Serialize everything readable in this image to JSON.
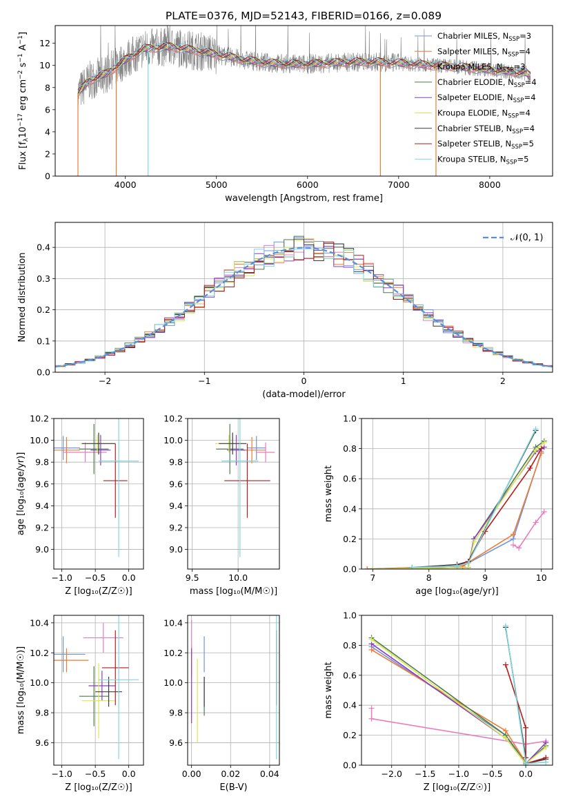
{
  "figure_title": "PLATE=0376, MJD=52143, FIBERID=0166, z=0.089",
  "colors": {
    "Chabrier MILES": "#6f93de",
    "Salpeter MILES": "#ee7a2e",
    "Kroupa MILES": "#e87dbd",
    "Chabrier ELODIE": "#4d7a4d",
    "Salpeter ELODIE": "#8a3cc4",
    "Kroupa ELODIE": "#d8e84d",
    "Chabrier STELIB": "#3a3a3a",
    "Salpeter STELIB": "#b31a1a",
    "Kroupa STELIB": "#7dd8e0",
    "data": "#808080",
    "normal": "#5a8ee0",
    "grid": "#b0b0b0"
  },
  "chart_data": [
    {
      "id": "spectrum",
      "type": "line",
      "title": "PLATE=0376, MJD=52143, FIBERID=0166, z=0.089",
      "xlabel": "wavelength [Angstrom, rest frame]",
      "ylabel_parts": [
        "Flux [f",
        "λ",
        "10",
        "−17",
        " erg cm",
        "−2",
        " s",
        "−1",
        " A",
        "−1",
        "]"
      ],
      "xlim": [
        3230,
        8690
      ],
      "ylim": [
        0,
        13.6
      ],
      "xticks": [
        "4000",
        "5000",
        "6000",
        "7000",
        "8000"
      ],
      "yticks": [
        "0",
        "2",
        "4",
        "6",
        "8",
        "10",
        "12"
      ],
      "grid": false,
      "legend_position": "right",
      "series": [
        {
          "label": "Chabrier MILES, N",
          "n": "3",
          "color": "#6f93de"
        },
        {
          "label": "Salpeter MILES, N",
          "n": "4",
          "color": "#ee7a2e"
        },
        {
          "label": "Kroupa MILES, N",
          "n": "3",
          "color": "#e87dbd"
        },
        {
          "label": "Chabrier ELODIE, N",
          "n": "4",
          "color": "#4d7a4d"
        },
        {
          "label": "Salpeter ELODIE, N",
          "n": "4",
          "color": "#8a3cc4"
        },
        {
          "label": "Kroupa ELODIE, N",
          "n": "4",
          "color": "#d8e84d"
        },
        {
          "label": "Chabrier STELIB, N",
          "n": "4",
          "color": "#3a3a3a"
        },
        {
          "label": "Salpeter STELIB, N",
          "n": "5",
          "color": "#b31a1a"
        },
        {
          "label": "Kroupa STELIB, N",
          "n": "5",
          "color": "#7dd8e0"
        }
      ],
      "legend_sub": "SSP",
      "continuum": [
        [
          3480,
          7.5
        ],
        [
          3600,
          8.6
        ],
        [
          3800,
          9.3
        ],
        [
          4000,
          10.5
        ],
        [
          4200,
          11.5
        ],
        [
          4500,
          11.7
        ],
        [
          4800,
          11.3
        ],
        [
          5000,
          11.0
        ],
        [
          5300,
          10.5
        ],
        [
          5600,
          10.2
        ],
        [
          5900,
          10.1
        ],
        [
          6200,
          10.2
        ],
        [
          6500,
          10.3
        ],
        [
          6800,
          10.3
        ],
        [
          7200,
          10.1
        ],
        [
          7600,
          9.9
        ],
        [
          8000,
          9.6
        ],
        [
          8400,
          9.3
        ],
        [
          8450,
          9.0
        ]
      ],
      "spikes": [
        [
          3900,
          0
        ],
        [
          4250,
          0
        ],
        [
          6800,
          0
        ],
        [
          7410,
          0
        ],
        [
          3480,
          0
        ]
      ]
    },
    {
      "id": "residuals",
      "type": "histogram",
      "xlabel": "(data-model)/error",
      "ylabel": "Normed distribution",
      "xlim": [
        -2.5,
        2.5
      ],
      "ylim": [
        0,
        0.48
      ],
      "xticks": [
        "−2",
        "−1",
        "0",
        "1",
        "2"
      ],
      "yticks": [
        "0.0",
        "0.1",
        "0.2",
        "0.3",
        "0.4"
      ],
      "grid": true,
      "legend_position": "top-right",
      "normal_label": "𝒩(0, 1)",
      "bin_width": 0.1
    },
    {
      "id": "age-vs-Z",
      "type": "scatter",
      "xlabel": "Z [log₁₀(Z/Z☉)]",
      "ylabel": "age  [log₁₀(age/yr)]",
      "xlim": [
        -1.12,
        0.22
      ],
      "ylim": [
        8.82,
        10.2
      ],
      "xticks": [
        "−1.0",
        "−0.5",
        "0.0"
      ],
      "yticks": [
        "9.0",
        "9.2",
        "9.4",
        "9.6",
        "9.8",
        "10.0",
        "10.2"
      ],
      "grid": true,
      "points": [
        {
          "c": "Chabrier MILES",
          "x": -0.98,
          "y": 9.93,
          "ex": 0.25,
          "ey": 0.11
        },
        {
          "c": "Salpeter MILES",
          "x": -0.93,
          "y": 9.91,
          "ex": 0.2,
          "ey": 0.12
        },
        {
          "c": "Kroupa MILES",
          "x": -0.65,
          "y": 9.89,
          "ex": 0.32,
          "ey": 0.09
        },
        {
          "c": "Chabrier ELODIE",
          "x": -0.52,
          "y": 9.92,
          "ex": 0.22,
          "ey": 0.23
        },
        {
          "c": "Salpeter ELODIE",
          "x": -0.42,
          "y": 9.91,
          "ex": 0.15,
          "ey": 0.14
        },
        {
          "c": "Kroupa ELODIE",
          "x": -0.47,
          "y": 9.97,
          "ex": 0.25,
          "ey": 0.08
        },
        {
          "c": "Chabrier STELIB",
          "x": -0.45,
          "y": 9.97,
          "ex": 0.25,
          "ey": 0.1
        },
        {
          "c": "Salpeter STELIB",
          "x": -0.2,
          "y": 9.63,
          "ex": 0.18,
          "ey": 0.34
        },
        {
          "c": "Kroupa STELIB",
          "x": -0.15,
          "y": 9.81,
          "ex": 0.3,
          "ey": 0.88
        }
      ]
    },
    {
      "id": "age-vs-mass",
      "type": "scatter",
      "xlabel": "mass [log₁₀(M/M☉)]",
      "ylabel": "",
      "xlim": [
        9.45,
        10.45
      ],
      "ylim": [
        8.82,
        10.2
      ],
      "xticks": [
        "9.5",
        "10.0"
      ],
      "yticks": [
        "9.0",
        "9.2",
        "9.4",
        "9.6",
        "9.8",
        "10.0",
        "10.2"
      ],
      "grid": true,
      "points": [
        {
          "c": "Chabrier MILES",
          "x": 10.2,
          "y": 9.93,
          "ex": 0.1,
          "ey": 0.11
        },
        {
          "c": "Salpeter MILES",
          "x": 10.15,
          "y": 9.91,
          "ex": 0.15,
          "ey": 0.12
        },
        {
          "c": "Kroupa MILES",
          "x": 10.3,
          "y": 9.89,
          "ex": 0.1,
          "ey": 0.09
        },
        {
          "c": "Chabrier ELODIE",
          "x": 9.91,
          "y": 9.92,
          "ex": 0.15,
          "ey": 0.23
        },
        {
          "c": "Salpeter ELODIE",
          "x": 9.98,
          "y": 9.91,
          "ex": 0.1,
          "ey": 0.14
        },
        {
          "c": "Kroupa ELODIE",
          "x": 9.9,
          "y": 9.97,
          "ex": 0.15,
          "ey": 0.08
        },
        {
          "c": "Chabrier STELIB",
          "x": 9.94,
          "y": 9.97,
          "ex": 0.15,
          "ey": 0.1
        },
        {
          "c": "Salpeter STELIB",
          "x": 10.1,
          "y": 9.63,
          "ex": 0.25,
          "ey": 0.34
        },
        {
          "c": "Kroupa STELIB",
          "x": 10.02,
          "y": 9.81,
          "ex": 0.2,
          "ey": 0.88
        }
      ]
    },
    {
      "id": "weight-vs-age",
      "type": "line",
      "xlabel": "age  [log₁₀(age/yr)]",
      "ylabel": "mass weight",
      "xlim": [
        6.8,
        10.2
      ],
      "ylim": [
        0,
        1
      ],
      "xticks": [
        "7",
        "8",
        "9",
        "10"
      ],
      "yticks": [
        "0.0",
        "0.2",
        "0.4",
        "0.6",
        "0.8",
        "1.0"
      ],
      "grid": true,
      "series": [
        {
          "c": "Chabrier MILES",
          "x": [
            6.9,
            8.6,
            9.5,
            10.0
          ],
          "y": [
            0.0,
            0.02,
            0.2,
            0.78
          ]
        },
        {
          "c": "Salpeter MILES",
          "x": [
            6.9,
            8.6,
            9.5,
            10.0
          ],
          "y": [
            0.0,
            0.02,
            0.23,
            0.77
          ]
        },
        {
          "c": "Kroupa MILES",
          "x": [
            9.5,
            9.6,
            9.9,
            10.05
          ],
          "y": [
            0.16,
            0.14,
            0.31,
            0.38
          ]
        },
        {
          "c": "Chabrier ELODIE",
          "x": [
            7.0,
            8.7,
            8.8,
            9.9,
            10.05
          ],
          "y": [
            0.0,
            0.01,
            0.2,
            0.81,
            0.85
          ]
        },
        {
          "c": "Salpeter ELODIE",
          "x": [
            7.0,
            8.7,
            8.8,
            9.9,
            10.05
          ],
          "y": [
            0.0,
            0.01,
            0.2,
            0.78,
            0.81
          ]
        },
        {
          "c": "Kroupa ELODIE",
          "x": [
            7.0,
            8.7,
            8.8,
            9.9,
            10.05
          ],
          "y": [
            0.0,
            0.01,
            0.18,
            0.79,
            0.84
          ]
        },
        {
          "c": "Chabrier STELIB",
          "x": [
            7.7,
            8.5,
            8.7,
            9.9
          ],
          "y": [
            0.01,
            0.03,
            0.05,
            0.92
          ]
        },
        {
          "c": "Salpeter STELIB",
          "x": [
            8.5,
            8.7,
            9.0,
            9.8,
            10.0
          ],
          "y": [
            0.02,
            0.05,
            0.25,
            0.67,
            0.8
          ]
        },
        {
          "c": "Kroupa STELIB",
          "x": [
            7.7,
            8.5,
            8.7,
            9.9
          ],
          "y": [
            0.01,
            0.02,
            0.04,
            0.93
          ]
        }
      ]
    },
    {
      "id": "mass-vs-Z",
      "type": "scatter",
      "xlabel": "Z [log₁₀(Z/Z☉)]",
      "ylabel": "mass [log₁₀(M/M☉)]",
      "xlim": [
        -1.12,
        0.22
      ],
      "ylim": [
        9.45,
        10.45
      ],
      "xticks": [
        "−1.0",
        "−0.5",
        "0.0"
      ],
      "yticks": [
        "9.6",
        "9.8",
        "10.0",
        "10.2",
        "10.4"
      ],
      "grid": true,
      "points": [
        {
          "c": "Chabrier MILES",
          "x": -0.98,
          "y": 10.19,
          "ex": 0.33,
          "ey": 0.12
        },
        {
          "c": "Salpeter MILES",
          "x": -0.93,
          "y": 10.15,
          "ex": 0.33,
          "ey": 0.08
        },
        {
          "c": "Kroupa MILES",
          "x": -0.38,
          "y": 10.3,
          "ex": 0.3,
          "ey": 0.1
        },
        {
          "c": "Chabrier ELODIE",
          "x": -0.52,
          "y": 9.91,
          "ex": 0.22,
          "ey": 0.2
        },
        {
          "c": "Salpeter ELODIE",
          "x": -0.4,
          "y": 9.98,
          "ex": 0.2,
          "ey": 0.1
        },
        {
          "c": "Kroupa ELODIE",
          "x": -0.45,
          "y": 9.88,
          "ex": 0.25,
          "ey": 0.25
        },
        {
          "c": "Chabrier STELIB",
          "x": -0.3,
          "y": 9.94,
          "ex": 0.2,
          "ey": 0.1
        },
        {
          "c": "Salpeter STELIB",
          "x": -0.2,
          "y": 10.1,
          "ex": 0.2,
          "ey": 0.25
        },
        {
          "c": "Kroupa STELIB",
          "x": -0.15,
          "y": 10.02,
          "ex": 0.3,
          "ey": 0.53
        }
      ]
    },
    {
      "id": "mass-vs-EBV",
      "type": "scatter",
      "xlabel": "E(B-V)",
      "ylabel": "",
      "xlim": [
        -0.002,
        0.045
      ],
      "ylim": [
        9.45,
        10.45
      ],
      "xticks": [
        "0.00",
        "0.02",
        "0.04"
      ],
      "yticks": [
        "9.6",
        "9.8",
        "10.0",
        "10.2",
        "10.4"
      ],
      "grid": true,
      "points": [
        {
          "c": "Chabrier MILES",
          "x": 0.0065,
          "y": 10.19,
          "ex": 0,
          "ey": 0.12
        },
        {
          "c": "Salpeter MILES",
          "x": 0.0,
          "y": 10.15,
          "ex": 0,
          "ey": 0.1
        },
        {
          "c": "Kroupa MILES",
          "x": 0.0,
          "y": 10.3,
          "ex": 0,
          "ey": 0.12
        },
        {
          "c": "Chabrier ELODIE",
          "x": 0.0065,
          "y": 9.91,
          "ex": 0,
          "ey": 0.13
        },
        {
          "c": "Salpeter ELODIE",
          "x": 0.0,
          "y": 9.98,
          "ex": 0,
          "ey": 0.25
        },
        {
          "c": "Kroupa ELODIE",
          "x": 0.003,
          "y": 9.88,
          "ex": 0,
          "ey": 0.28
        },
        {
          "c": "Chabrier STELIB",
          "x": 0.0065,
          "y": 9.94,
          "ex": 0,
          "ey": 0.1
        },
        {
          "c": "Salpeter STELIB",
          "x": 0.0435,
          "y": 10.1,
          "ex": 0,
          "ey": 0.25
        },
        {
          "c": "Kroupa STELIB",
          "x": 0.0435,
          "y": 10.02,
          "ex": 0,
          "ey": 0.53
        }
      ]
    },
    {
      "id": "weight-vs-Z",
      "type": "line",
      "xlabel": "Z [log₁₀(Z/Z☉)]",
      "ylabel": "mass weight",
      "xlim": [
        -2.45,
        0.4
      ],
      "ylim": [
        0,
        1
      ],
      "xticks": [
        "−2.0",
        "−1.5",
        "−1.0",
        "−0.5",
        "0.0"
      ],
      "yticks": [
        "0.0",
        "0.2",
        "0.4",
        "0.6",
        "0.8",
        "1.0"
      ],
      "grid": true,
      "series": [
        {
          "c": "Chabrier MILES",
          "x": [
            -2.3,
            -0.3,
            0.0,
            0.0
          ],
          "y": [
            0.79,
            0.2,
            0.02,
            0.0
          ]
        },
        {
          "c": "Salpeter MILES",
          "x": [
            -2.3,
            -0.3,
            0.0,
            0.0
          ],
          "y": [
            0.77,
            0.23,
            0.02,
            0.0
          ]
        },
        {
          "c": "Kroupa MILES",
          "x": [
            -2.3,
            -2.3,
            0.0,
            0.3
          ],
          "y": [
            0.38,
            0.31,
            0.14,
            0.16
          ]
        },
        {
          "c": "Chabrier ELODIE",
          "x": [
            -2.3,
            -0.3,
            0.0,
            0.3
          ],
          "y": [
            0.85,
            0.2,
            0.01,
            0.13
          ]
        },
        {
          "c": "Salpeter ELODIE",
          "x": [
            -2.3,
            -0.3,
            0.0,
            0.3
          ],
          "y": [
            0.81,
            0.18,
            0.01,
            0.15
          ]
        },
        {
          "c": "Kroupa ELODIE",
          "x": [
            -2.3,
            -0.3,
            0.0,
            0.3
          ],
          "y": [
            0.84,
            0.18,
            0.01,
            0.12
          ]
        },
        {
          "c": "Chabrier STELIB",
          "x": [
            -0.3,
            0.0,
            0.0,
            0.3
          ],
          "y": [
            0.92,
            0.05,
            0.01,
            0.04
          ]
        },
        {
          "c": "Salpeter STELIB",
          "x": [
            -0.3,
            0.0,
            0.0,
            0.3
          ],
          "y": [
            0.67,
            0.25,
            0.01,
            0.05
          ]
        },
        {
          "c": "Kroupa STELIB",
          "x": [
            -0.3,
            0.0,
            0.0,
            0.3
          ],
          "y": [
            0.93,
            0.02,
            0.01,
            0.02
          ]
        }
      ]
    }
  ]
}
